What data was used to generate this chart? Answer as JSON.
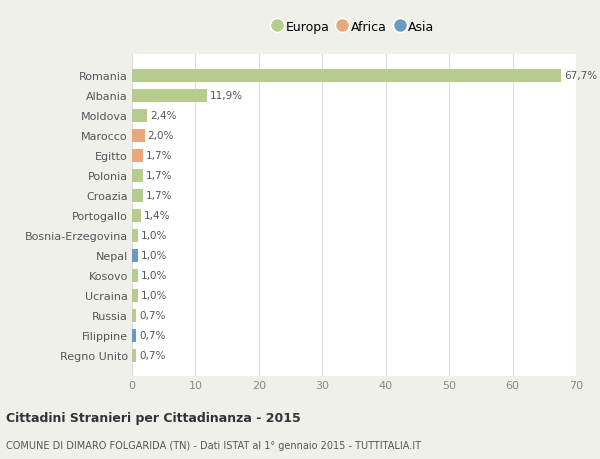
{
  "countries": [
    "Romania",
    "Albania",
    "Moldova",
    "Marocco",
    "Egitto",
    "Polonia",
    "Croazia",
    "Portogallo",
    "Bosnia-Erzegovina",
    "Nepal",
    "Kosovo",
    "Ucraina",
    "Russia",
    "Filippine",
    "Regno Unito"
  ],
  "values": [
    67.7,
    11.9,
    2.4,
    2.0,
    1.7,
    1.7,
    1.7,
    1.4,
    1.0,
    1.0,
    1.0,
    1.0,
    0.7,
    0.7,
    0.7
  ],
  "labels": [
    "67,7%",
    "11,9%",
    "2,4%",
    "2,0%",
    "1,7%",
    "1,7%",
    "1,7%",
    "1,4%",
    "1,0%",
    "1,0%",
    "1,0%",
    "1,0%",
    "0,7%",
    "0,7%",
    "0,7%"
  ],
  "continents": [
    "Europa",
    "Europa",
    "Europa",
    "Africa",
    "Africa",
    "Europa",
    "Europa",
    "Europa",
    "Europa",
    "Asia",
    "Europa",
    "Europa",
    "Europa",
    "Asia",
    "Europa"
  ],
  "colors": {
    "Europa": "#b5cc8e",
    "Africa": "#e8a87c",
    "Asia": "#6b9bc3"
  },
  "title1": "Cittadini Stranieri per Cittadinanza - 2015",
  "title2": "COMUNE DI DIMARO FOLGARIDA (TN) - Dati ISTAT al 1° gennaio 2015 - TUTTITALIA.IT",
  "xlim": [
    0,
    70
  ],
  "xticks": [
    0,
    10,
    20,
    30,
    40,
    50,
    60,
    70
  ],
  "bg_color": "#f0f0eb",
  "plot_bg_color": "#ffffff"
}
